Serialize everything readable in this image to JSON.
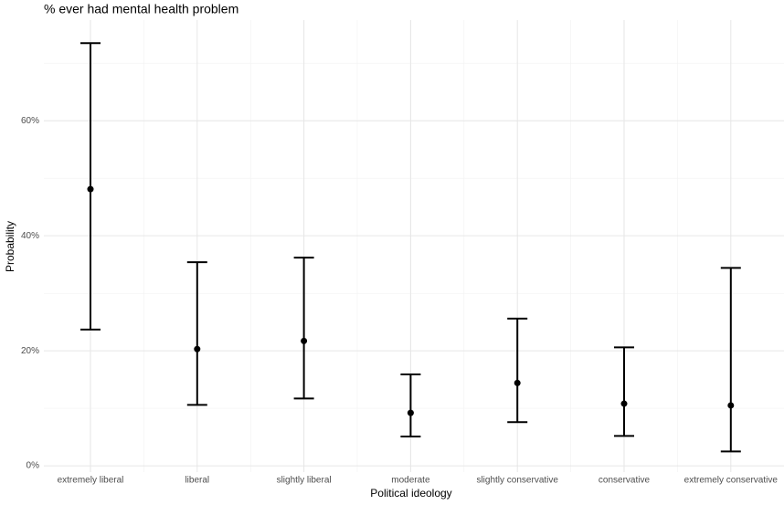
{
  "chart_data": {
    "type": "errorbar",
    "title": "% ever had mental health problem",
    "xlabel": "Political ideology",
    "ylabel": "Probability",
    "categories": [
      "extremely liberal",
      "liberal",
      "slightly liberal",
      "moderate",
      "slightly conservative",
      "conservative",
      "extremely conservative"
    ],
    "values": [
      48.1,
      20.3,
      21.7,
      9.2,
      14.4,
      10.8,
      10.5
    ],
    "lower": [
      23.7,
      10.6,
      11.7,
      5.1,
      7.6,
      5.2,
      2.5
    ],
    "upper": [
      73.5,
      35.4,
      36.2,
      15.9,
      25.6,
      20.6,
      34.4
    ],
    "color": "#000000",
    "ylim": [
      -1.1,
      77.5
    ],
    "yticks": [
      {
        "value": 0,
        "label": "0%"
      },
      {
        "value": 20,
        "label": "20%"
      },
      {
        "value": 40,
        "label": "40%"
      },
      {
        "value": 60,
        "label": "60%"
      }
    ],
    "yminorticks": [
      10,
      30,
      50,
      70
    ],
    "grid": true
  }
}
